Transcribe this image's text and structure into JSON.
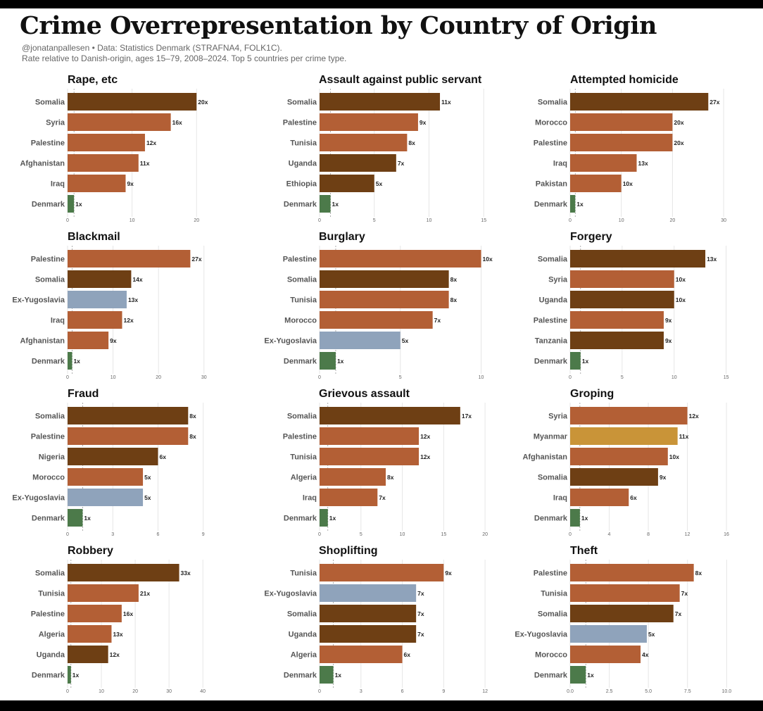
{
  "header": {
    "title": "Crime Overrepresentation by Country of Origin",
    "byline": "@jonatanpallesen • Data: Statistics Denmark (STRAFNA4, FOLK1C).",
    "note": "Rate relative to Danish-origin, ages 15–79, 2008–2024. Top 5 countries per crime type."
  },
  "colors": {
    "somalia_uganda_ethiopia_nigeria_tanzania": "#6e3f14",
    "other": "#b35f35",
    "ex_yugoslavia": "#8fa3bb",
    "myanmar": "#c99438",
    "denmark": "#4c7a4a"
  },
  "chart_data": [
    {
      "type": "bar",
      "orientation": "horizontal",
      "title": "Rape, etc",
      "categories": [
        "Somalia",
        "Syria",
        "Palestine",
        "Afghanistan",
        "Iraq",
        "Denmark"
      ],
      "values": [
        20,
        16,
        12,
        11,
        9,
        1
      ],
      "value_labels": [
        "20x",
        "16x",
        "12x",
        "11x",
        "9x",
        "1x"
      ],
      "bar_colors": [
        "#6e3f14",
        "#b35f35",
        "#b35f35",
        "#b35f35",
        "#b35f35",
        "#4c7a4a"
      ],
      "xlim": [
        0,
        21.5
      ],
      "xticks": [
        0,
        10,
        20
      ],
      "reference_line": 1
    },
    {
      "type": "bar",
      "orientation": "horizontal",
      "title": "Assault against public servant",
      "categories": [
        "Somalia",
        "Palestine",
        "Tunisia",
        "Uganda",
        "Ethiopia",
        "Denmark"
      ],
      "values": [
        11,
        9,
        8,
        7,
        5,
        1
      ],
      "value_labels": [
        "11x",
        "9x",
        "8x",
        "7x",
        "5x",
        "1x"
      ],
      "bar_colors": [
        "#6e3f14",
        "#b35f35",
        "#b35f35",
        "#6e3f14",
        "#6e3f14",
        "#4c7a4a"
      ],
      "xlim": [
        0,
        15.5
      ],
      "xticks": [
        0,
        5,
        10,
        15
      ],
      "reference_line": 1
    },
    {
      "type": "bar",
      "orientation": "horizontal",
      "title": "Attempted homicide",
      "categories": [
        "Somalia",
        "Morocco",
        "Palestine",
        "Iraq",
        "Pakistan",
        "Denmark"
      ],
      "values": [
        27,
        20,
        20,
        13,
        10,
        1
      ],
      "value_labels": [
        "27x",
        "20x",
        "20x",
        "13x",
        "10x",
        "1x"
      ],
      "bar_colors": [
        "#6e3f14",
        "#b35f35",
        "#b35f35",
        "#b35f35",
        "#b35f35",
        "#4c7a4a"
      ],
      "xlim": [
        0,
        31.5
      ],
      "xticks": [
        0,
        10,
        20,
        30
      ],
      "reference_line": 1
    },
    {
      "type": "bar",
      "orientation": "horizontal",
      "title": "Blackmail",
      "categories": [
        "Palestine",
        "Somalia",
        "Ex-Yugoslavia",
        "Iraq",
        "Afghanistan",
        "Denmark"
      ],
      "values": [
        27,
        14,
        13,
        12,
        9,
        1
      ],
      "value_labels": [
        "27x",
        "14x",
        "13x",
        "12x",
        "9x",
        "1x"
      ],
      "bar_colors": [
        "#b35f35",
        "#6e3f14",
        "#8fa3bb",
        "#b35f35",
        "#b35f35",
        "#4c7a4a"
      ],
      "xlim": [
        0,
        30.5
      ],
      "xticks": [
        0,
        10,
        20,
        30
      ],
      "reference_line": 1
    },
    {
      "type": "bar",
      "orientation": "horizontal",
      "title": "Burglary",
      "categories": [
        "Palestine",
        "Somalia",
        "Tunisia",
        "Morocco",
        "Ex-Yugoslavia",
        "Denmark"
      ],
      "values": [
        10,
        8,
        8,
        7,
        5,
        1
      ],
      "value_labels": [
        "10x",
        "8x",
        "8x",
        "7x",
        "5x",
        "1x"
      ],
      "bar_colors": [
        "#b35f35",
        "#6e3f14",
        "#b35f35",
        "#b35f35",
        "#8fa3bb",
        "#4c7a4a"
      ],
      "xlim": [
        0,
        10.5
      ],
      "xticks": [
        0,
        5,
        10
      ],
      "reference_line": 1
    },
    {
      "type": "bar",
      "orientation": "horizontal",
      "title": "Forgery",
      "categories": [
        "Somalia",
        "Syria",
        "Uganda",
        "Palestine",
        "Tanzania",
        "Denmark"
      ],
      "values": [
        13,
        10,
        10,
        9,
        9,
        1
      ],
      "value_labels": [
        "13x",
        "10x",
        "10x",
        "9x",
        "9x",
        "1x"
      ],
      "bar_colors": [
        "#6e3f14",
        "#b35f35",
        "#6e3f14",
        "#b35f35",
        "#6e3f14",
        "#4c7a4a"
      ],
      "xlim": [
        0,
        15.5
      ],
      "xticks": [
        0,
        5,
        10,
        15
      ],
      "reference_line": 1
    },
    {
      "type": "bar",
      "orientation": "horizontal",
      "title": "Fraud",
      "categories": [
        "Somalia",
        "Palestine",
        "Nigeria",
        "Morocco",
        "Ex-Yugoslavia",
        "Denmark"
      ],
      "values": [
        8,
        8,
        6,
        5,
        5,
        1
      ],
      "value_labels": [
        "8x",
        "8x",
        "6x",
        "5x",
        "5x",
        "1x"
      ],
      "bar_colors": [
        "#6e3f14",
        "#b35f35",
        "#6e3f14",
        "#b35f35",
        "#8fa3bb",
        "#4c7a4a"
      ],
      "xlim": [
        0,
        9.2
      ],
      "xticks": [
        0,
        3,
        6,
        9
      ],
      "reference_line": 1
    },
    {
      "type": "bar",
      "orientation": "horizontal",
      "title": "Grievous assault",
      "categories": [
        "Somalia",
        "Palestine",
        "Tunisia",
        "Algeria",
        "Iraq",
        "Denmark"
      ],
      "values": [
        17,
        12,
        12,
        8,
        7,
        1
      ],
      "value_labels": [
        "17x",
        "12x",
        "12x",
        "8x",
        "7x",
        "1x"
      ],
      "bar_colors": [
        "#6e3f14",
        "#b35f35",
        "#b35f35",
        "#b35f35",
        "#b35f35",
        "#4c7a4a"
      ],
      "xlim": [
        0,
        20.5
      ],
      "xticks": [
        0,
        5,
        10,
        15,
        20
      ],
      "reference_line": 1
    },
    {
      "type": "bar",
      "orientation": "horizontal",
      "title": "Groping",
      "categories": [
        "Syria",
        "Myanmar",
        "Afghanistan",
        "Somalia",
        "Iraq",
        "Denmark"
      ],
      "values": [
        12,
        11,
        10,
        9,
        6,
        1
      ],
      "value_labels": [
        "12x",
        "11x",
        "10x",
        "9x",
        "6x",
        "1x"
      ],
      "bar_colors": [
        "#b35f35",
        "#c99438",
        "#b35f35",
        "#6e3f14",
        "#b35f35",
        "#4c7a4a"
      ],
      "xlim": [
        0,
        16.5
      ],
      "xticks": [
        0,
        4,
        8,
        12,
        16
      ],
      "reference_line": 1
    },
    {
      "type": "bar",
      "orientation": "horizontal",
      "title": "Robbery",
      "categories": [
        "Somalia",
        "Tunisia",
        "Palestine",
        "Algeria",
        "Uganda",
        "Denmark"
      ],
      "values": [
        33,
        21,
        16,
        13,
        12,
        1
      ],
      "value_labels": [
        "33x",
        "21x",
        "16x",
        "13x",
        "12x",
        "1x"
      ],
      "bar_colors": [
        "#6e3f14",
        "#b35f35",
        "#b35f35",
        "#b35f35",
        "#6e3f14",
        "#4c7a4a"
      ],
      "xlim": [
        0,
        41
      ],
      "xticks": [
        0,
        10,
        20,
        30,
        40
      ],
      "reference_line": 1
    },
    {
      "type": "bar",
      "orientation": "horizontal",
      "title": "Shoplifting",
      "categories": [
        "Tunisia",
        "Ex-Yugoslavia",
        "Somalia",
        "Uganda",
        "Algeria",
        "Denmark"
      ],
      "values": [
        9,
        7,
        7,
        7,
        6,
        1
      ],
      "value_labels": [
        "9x",
        "7x",
        "7x",
        "7x",
        "6x",
        "1x"
      ],
      "bar_colors": [
        "#b35f35",
        "#8fa3bb",
        "#6e3f14",
        "#6e3f14",
        "#b35f35",
        "#4c7a4a"
      ],
      "xlim": [
        0,
        12.3
      ],
      "xticks": [
        0,
        3,
        6,
        9,
        12
      ],
      "reference_line": 1
    },
    {
      "type": "bar",
      "orientation": "horizontal",
      "title": "Theft",
      "categories": [
        "Palestine",
        "Tunisia",
        "Somalia",
        "Ex-Yugoslavia",
        "Morocco",
        "Denmark"
      ],
      "values": [
        8,
        7,
        7,
        5,
        4,
        1
      ],
      "value_labels": [
        "8x",
        "7x",
        "7x",
        "5x",
        "4x",
        "1x"
      ],
      "bar_colors": [
        "#b35f35",
        "#b35f35",
        "#6e3f14",
        "#8fa3bb",
        "#b35f35",
        "#4c7a4a"
      ],
      "bar_extents": [
        7.9,
        7.0,
        6.6,
        4.9,
        4.5,
        1.0
      ],
      "xlim": [
        0,
        10.3
      ],
      "xticks": [
        "0.0",
        "2.5",
        "5.0",
        "7.5",
        "10.0"
      ],
      "reference_line": 1
    }
  ]
}
